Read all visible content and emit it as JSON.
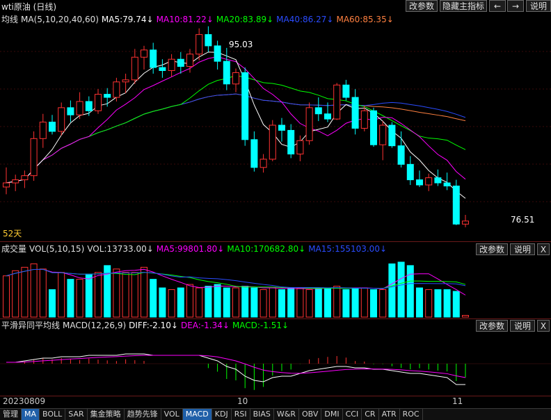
{
  "window": {
    "title": "wti原油 (日线)"
  },
  "toolbar": {
    "params_label": "改参数",
    "hide_label": "隐藏主指标",
    "prev": "←",
    "next": "→",
    "help_label": "说明"
  },
  "main_panel": {
    "name": "均线",
    "formula": "MA(5,10,20,40,60)",
    "ma5": "MA5:79.74↓",
    "ma10": "MA10:81.22↓",
    "ma20": "MA20:83.89↓",
    "ma40": "MA40:86.27↓",
    "ma60": "MA60:85.35↓",
    "high_label": "95.03",
    "low_label": "76.51",
    "days_label": "52天",
    "colors": {
      "ma5": "#ffffff",
      "ma10": "#ff00ff",
      "ma20": "#00ff00",
      "ma40": "#2a4cff",
      "ma60": "#ff8040",
      "up": "#ff3232",
      "down": "#00ffff"
    }
  },
  "vol_panel": {
    "name": "成交量",
    "formula": "VOL(5,10,15)",
    "vol": "VOL:13733.00↓",
    "ma5": "MA5:99801.80↓",
    "ma10": "MA10:170682.80↓",
    "ma15": "MA15:155103.00↓",
    "params_label": "改参数",
    "help_label": "说明",
    "close_label": "X"
  },
  "macd_panel": {
    "name": "平滑异同平均线",
    "formula": "MACD(12,26,9)",
    "diff": "DIFF:-2.10↓",
    "dea": "DEA:-1.34↓",
    "macd": "MACD:-1.51↓",
    "params_label": "改参数",
    "help_label": "说明",
    "close_label": "X"
  },
  "x_axis": {
    "start": "20230809",
    "m1": "10",
    "m2": "11"
  },
  "tabs": [
    "管理",
    "MA",
    "BOLL",
    "SAR",
    "集金策略",
    "趋势先锋",
    "VOL",
    "MACD",
    "KDJ",
    "RSI",
    "BIAS",
    "W&R",
    "OBV",
    "DMI",
    "CCI",
    "CR",
    "ATR",
    "ROC"
  ],
  "active_tabs": [
    "MA",
    "MACD"
  ],
  "chart_data": {
    "type": "candlestick",
    "title": "wti原油 (日线)",
    "candles": [
      [
        80.2,
        82.1,
        79.5,
        80.6
      ],
      [
        80.6,
        81.4,
        79.8,
        80.9
      ],
      [
        80.9,
        81.8,
        80.1,
        81.3
      ],
      [
        81.3,
        85.6,
        80.8,
        84.9
      ],
      [
        84.9,
        87.3,
        84.0,
        86.5
      ],
      [
        86.5,
        87.2,
        85.3,
        85.6
      ],
      [
        85.6,
        88.4,
        85.2,
        87.9
      ],
      [
        87.9,
        88.6,
        86.5,
        87.2
      ],
      [
        87.2,
        89.4,
        86.8,
        88.5
      ],
      [
        88.5,
        89.0,
        87.1,
        87.6
      ],
      [
        87.6,
        89.7,
        87.3,
        89.2
      ],
      [
        89.2,
        89.8,
        88.0,
        88.9
      ],
      [
        88.9,
        90.8,
        88.5,
        90.4
      ],
      [
        90.4,
        91.2,
        89.3,
        90.6
      ],
      [
        90.6,
        93.6,
        90.2,
        92.8
      ],
      [
        92.8,
        93.9,
        91.6,
        93.5
      ],
      [
        93.5,
        94.2,
        91.2,
        91.8
      ],
      [
        91.8,
        92.6,
        90.8,
        91.5
      ],
      [
        91.5,
        93.1,
        90.9,
        92.6
      ],
      [
        92.6,
        93.3,
        91.2,
        91.9
      ],
      [
        91.9,
        93.6,
        91.3,
        93.1
      ],
      [
        93.1,
        95.6,
        92.5,
        95.0
      ],
      [
        95.0,
        95.8,
        93.3,
        93.9
      ],
      [
        93.9,
        94.4,
        91.6,
        92.4
      ],
      [
        92.4,
        93.7,
        89.6,
        90.2
      ],
      [
        90.2,
        91.7,
        89.4,
        91.3
      ],
      [
        91.3,
        91.8,
        84.2,
        84.8
      ],
      [
        84.8,
        85.6,
        81.7,
        82.1
      ],
      [
        82.1,
        83.4,
        81.6,
        82.9
      ],
      [
        82.9,
        86.7,
        82.7,
        86.2
      ],
      [
        86.2,
        86.9,
        84.6,
        85.7
      ],
      [
        85.7,
        86.3,
        83.0,
        83.4
      ],
      [
        83.4,
        85.2,
        82.7,
        84.7
      ],
      [
        84.7,
        88.4,
        84.3,
        87.9
      ],
      [
        87.9,
        88.9,
        86.6,
        87.3
      ],
      [
        87.3,
        88.4,
        86.5,
        86.8
      ],
      [
        86.8,
        90.3,
        86.7,
        90.1
      ],
      [
        90.1,
        90.6,
        88.6,
        88.9
      ],
      [
        88.9,
        89.7,
        85.3,
        85.9
      ],
      [
        85.9,
        88.1,
        85.6,
        87.6
      ],
      [
        87.6,
        87.9,
        84.1,
        84.3
      ],
      [
        84.3,
        86.6,
        82.8,
        86.2
      ],
      [
        86.2,
        86.5,
        84.0,
        84.2
      ],
      [
        84.2,
        85.6,
        82.1,
        82.4
      ],
      [
        82.4,
        83.2,
        80.4,
        80.9
      ],
      [
        80.9,
        81.8,
        80.2,
        80.4
      ],
      [
        80.4,
        81.5,
        79.8,
        81.1
      ],
      [
        81.1,
        81.9,
        80.3,
        80.6
      ],
      [
        80.6,
        81.6,
        79.9,
        80.3
      ],
      [
        80.3,
        80.9,
        76.5,
        76.6
      ],
      [
        76.6,
        77.5,
        76.3,
        76.9
      ]
    ],
    "volume": [
      24,
      27,
      29,
      31,
      28,
      16,
      26,
      22,
      22,
      25,
      26,
      30,
      28,
      26,
      26,
      29,
      22,
      17,
      16,
      17,
      19,
      17,
      18,
      19,
      17,
      17,
      18,
      17,
      16,
      17,
      16,
      17,
      17,
      16,
      17,
      17,
      18,
      16,
      17,
      17,
      16,
      16,
      31,
      32,
      30,
      17,
      16,
      16,
      16,
      15,
      1
    ],
    "macd": [
      0.1,
      0.1,
      0.2,
      0.3,
      0.4,
      0.4,
      0.5,
      0.5,
      0.5,
      0.6,
      0.6,
      0.6,
      0.6,
      0.7,
      0.7,
      0.7,
      0.6,
      0.6,
      0.6,
      0.6,
      0.6,
      0.6,
      0.4,
      0.2,
      -0.2,
      -0.4,
      -0.9,
      -1.2,
      -1.3,
      -1.0,
      -0.9,
      -0.9,
      -0.7,
      -0.5,
      -0.4,
      -0.3,
      -0.2,
      -0.2,
      -0.3,
      -0.3,
      -0.4,
      -0.4,
      -0.5,
      -0.6,
      -0.7,
      -0.7,
      -0.8,
      -0.9,
      -1.0,
      -1.5,
      -1.5
    ],
    "y_range": [
      75,
      97
    ]
  }
}
